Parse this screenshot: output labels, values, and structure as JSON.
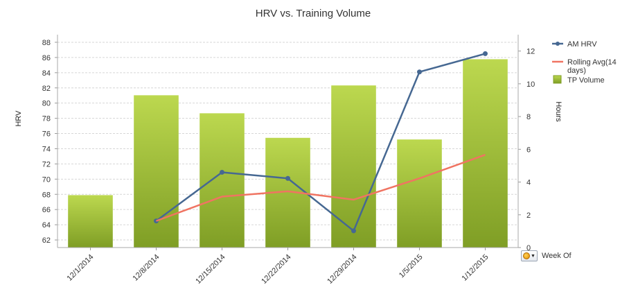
{
  "chart_data": {
    "type": "bar",
    "title": "HRV vs. Training Volume",
    "ylabel_left": "HRV",
    "ylabel_right": "Hours",
    "categories": [
      "12/1/2014",
      "12/8/2014",
      "12/15/2014",
      "12/22/2014",
      "12/29/2014",
      "1/5/2015",
      "1/12/2015"
    ],
    "ylim_left": [
      61,
      89
    ],
    "yticks_left": [
      62,
      64,
      66,
      68,
      70,
      72,
      74,
      76,
      78,
      80,
      82,
      84,
      86,
      88
    ],
    "ylim_right": [
      0,
      13
    ],
    "yticks_right": [
      0,
      2,
      4,
      6,
      8,
      10,
      12
    ],
    "grid": true,
    "legend_position": "right",
    "series": [
      {
        "name": "TP Volume",
        "type": "bar",
        "axis": "right",
        "color": "#9ebd2e",
        "values": [
          3.2,
          9.3,
          8.2,
          6.7,
          9.9,
          6.6,
          11.5
        ]
      },
      {
        "name": "AM HRV",
        "type": "line",
        "axis": "left",
        "color": "#466892",
        "values": [
          null,
          64.5,
          70.9,
          70.1,
          63.2,
          84.1,
          86.5
        ]
      },
      {
        "name": "Rolling Avg(14 days)",
        "type": "line",
        "axis": "left",
        "color": "#f07462",
        "values": [
          null,
          64.5,
          67.7,
          68.4,
          67.3,
          70.1,
          73.2
        ]
      }
    ],
    "legend": [
      {
        "label": "AM HRV",
        "kind": "line-marker",
        "color": "#466892"
      },
      {
        "label_lines": [
          "Rolling Avg(14",
          "days)"
        ],
        "kind": "line",
        "color": "#f07462"
      },
      {
        "label": "TP Volume",
        "kind": "box",
        "color": "#9ebd2e"
      }
    ]
  },
  "controls": {
    "weekof_label": "Week Of",
    "weekof_icon": "refresh-icon"
  }
}
